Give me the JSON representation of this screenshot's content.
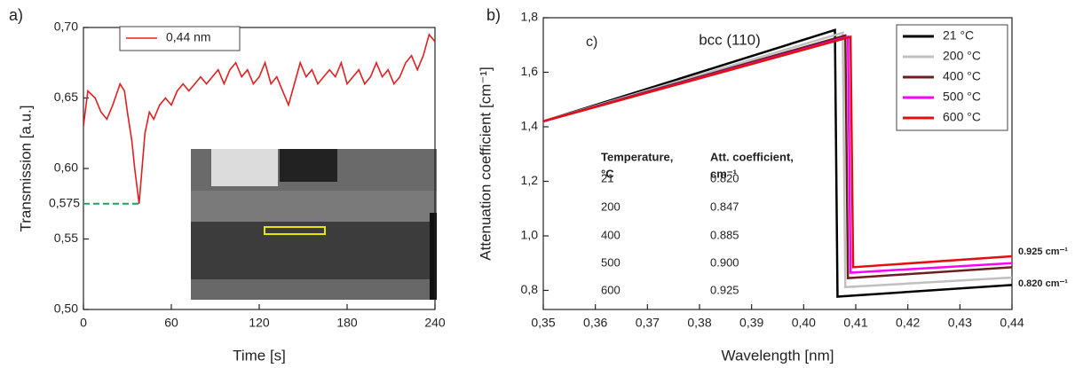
{
  "chart_data": [
    {
      "type": "line",
      "panel": "a)",
      "x": [
        0,
        3,
        8,
        12,
        16,
        20,
        25,
        28,
        30,
        33,
        35,
        38,
        40,
        42,
        45,
        48,
        52,
        56,
        60,
        64,
        68,
        72,
        76,
        80,
        84,
        88,
        92,
        96,
        100,
        104,
        108,
        112,
        116,
        120,
        124,
        128,
        132,
        136,
        140,
        144,
        148,
        152,
        156,
        160,
        164,
        168,
        172,
        176,
        180,
        184,
        188,
        192,
        196,
        200,
        204,
        208,
        212,
        216,
        220,
        224,
        228,
        232,
        236,
        240
      ],
      "series": [
        {
          "name": "0,44 nm",
          "color": "#e02020",
          "values": [
            0.63,
            0.655,
            0.65,
            0.64,
            0.635,
            0.645,
            0.66,
            0.655,
            0.64,
            0.62,
            0.6,
            0.575,
            0.6,
            0.625,
            0.64,
            0.635,
            0.645,
            0.65,
            0.645,
            0.655,
            0.66,
            0.655,
            0.66,
            0.665,
            0.66,
            0.665,
            0.67,
            0.66,
            0.67,
            0.675,
            0.665,
            0.67,
            0.66,
            0.665,
            0.675,
            0.66,
            0.665,
            0.655,
            0.645,
            0.66,
            0.675,
            0.665,
            0.67,
            0.66,
            0.665,
            0.67,
            0.665,
            0.675,
            0.66,
            0.665,
            0.67,
            0.66,
            0.665,
            0.675,
            0.665,
            0.67,
            0.66,
            0.665,
            0.675,
            0.68,
            0.67,
            0.68,
            0.695,
            0.69
          ]
        }
      ],
      "xlim": [
        0,
        240
      ],
      "xticks": [
        0,
        60,
        120,
        180,
        240
      ],
      "ylim": [
        0.5,
        0.7
      ],
      "yticks": [
        {
          "value": 0.5,
          "label": "0,50"
        },
        {
          "value": 0.55,
          "label": "0,55"
        },
        {
          "value": 0.6,
          "label": "0,60"
        },
        {
          "value": 0.65,
          "label": "0,65"
        },
        {
          "value": 0.7,
          "label": "0,70"
        }
      ],
      "xlabel": "Time [s]",
      "ylabel": "Transmission [a.u.]",
      "marker": {
        "value": 0.575,
        "label": "0,575",
        "x": 38,
        "color": "#20a060"
      }
    },
    {
      "type": "line",
      "panel": "b)",
      "inset_label": "c)",
      "title": "bcc (110)",
      "series": [
        {
          "name": "21 °C",
          "color": "#000000",
          "x": [
            0.35,
            0.406,
            0.4065,
            0.44
          ],
          "values": [
            1.42,
            1.755,
            0.777,
            0.82
          ]
        },
        {
          "name": "200 °C",
          "color": "#c0c0c0",
          "x": [
            0.35,
            0.4075,
            0.408,
            0.44
          ],
          "values": [
            1.42,
            1.745,
            0.812,
            0.847
          ]
        },
        {
          "name": "400 °C",
          "color": "#6b1f1f",
          "x": [
            0.35,
            0.408,
            0.4085,
            0.44
          ],
          "values": [
            1.42,
            1.735,
            0.845,
            0.885
          ]
        },
        {
          "name": "500 °C",
          "color": "#ff00ff",
          "x": [
            0.35,
            0.4085,
            0.409,
            0.44
          ],
          "values": [
            1.42,
            1.73,
            0.865,
            0.9
          ]
        },
        {
          "name": "600 °C",
          "color": "#e01010",
          "x": [
            0.35,
            0.409,
            0.4095,
            0.44
          ],
          "values": [
            1.42,
            1.73,
            0.885,
            0.925
          ]
        }
      ],
      "xlim": [
        0.35,
        0.44
      ],
      "xticks": [
        {
          "value": 0.35,
          "label": "0,35"
        },
        {
          "value": 0.36,
          "label": "0,36"
        },
        {
          "value": 0.37,
          "label": "0,37"
        },
        {
          "value": 0.38,
          "label": "0,38"
        },
        {
          "value": 0.39,
          "label": "0,39"
        },
        {
          "value": 0.4,
          "label": "0,40"
        },
        {
          "value": 0.41,
          "label": "0,41"
        },
        {
          "value": 0.42,
          "label": "0,42"
        },
        {
          "value": 0.43,
          "label": "0,43"
        },
        {
          "value": 0.44,
          "label": "0,44"
        }
      ],
      "ylim": [
        0.73,
        1.8
      ],
      "yticks": [
        {
          "value": 0.8,
          "label": "0,8"
        },
        {
          "value": 1.0,
          "label": "1,0"
        },
        {
          "value": 1.2,
          "label": "1,2"
        },
        {
          "value": 1.4,
          "label": "1,4"
        },
        {
          "value": 1.6,
          "label": "1,6"
        },
        {
          "value": 1.8,
          "label": "1,8"
        }
      ],
      "xlabel": "Wavelength [nm]",
      "ylabel": "Attenuation coefficient [cm⁻¹]",
      "table": {
        "columns": [
          [
            "Temperature,",
            "°C"
          ],
          [
            "Att. coefficient,",
            "cm⁻¹"
          ]
        ],
        "rows": [
          [
            "21",
            "0.820"
          ],
          [
            "200",
            "0.847"
          ],
          [
            "400",
            "0.885"
          ],
          [
            "500",
            "0.900"
          ],
          [
            "600",
            "0.925"
          ]
        ]
      },
      "annotations": [
        {
          "text": "0.925 cm⁻¹",
          "color": "#c00000"
        },
        {
          "text": "0.820 cm⁻¹",
          "color": "#000000"
        }
      ]
    }
  ]
}
